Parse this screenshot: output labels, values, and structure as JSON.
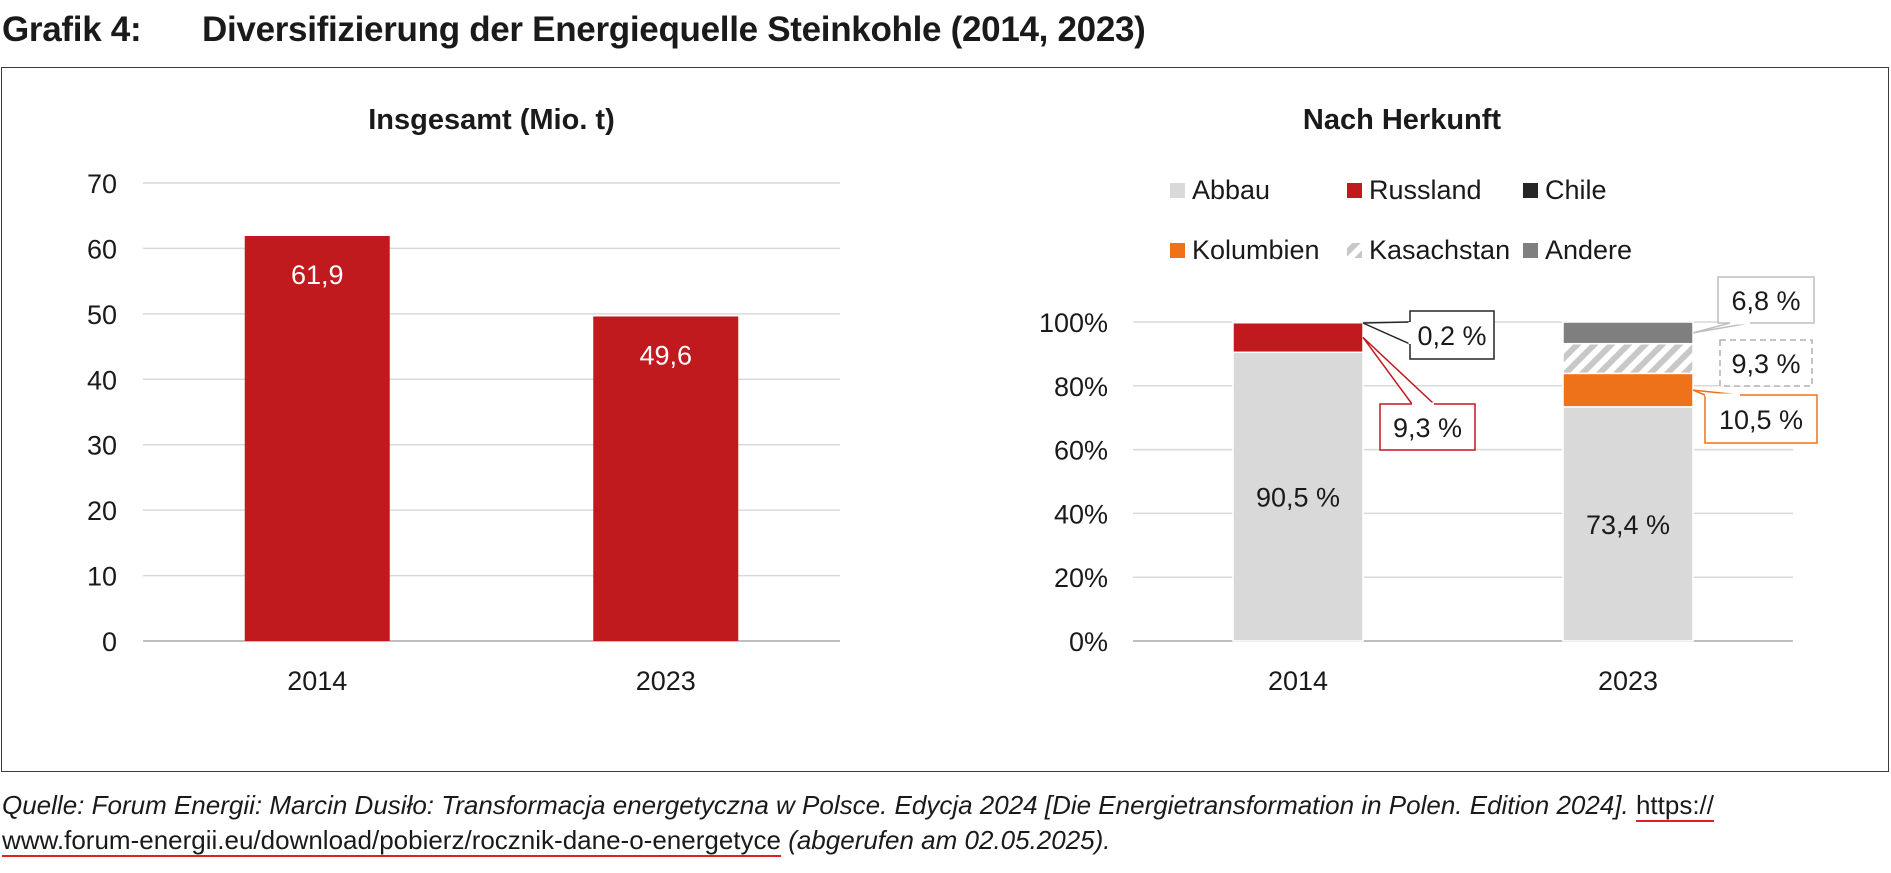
{
  "figure": {
    "label": "Grafik 4:",
    "title": "Diversifizierung der Energiequelle Steinkohle (2014, 2023)"
  },
  "chart_data": [
    {
      "type": "bar",
      "title": "Insgesamt (Mio. t)",
      "categories": [
        "2014",
        "2023"
      ],
      "values": [
        61.9,
        49.6
      ],
      "value_labels": [
        "61,9",
        "49,6"
      ],
      "ylim": [
        0,
        70
      ],
      "yticks": [
        "0",
        "10",
        "20",
        "30",
        "40",
        "50",
        "60",
        "70"
      ],
      "grid": true,
      "color": "#c0191e",
      "xlabel": "",
      "ylabel": ""
    },
    {
      "type": "bar",
      "stacked": true,
      "title": "Nach Herkunft",
      "categories": [
        "2014",
        "2023"
      ],
      "ylim": [
        0,
        100
      ],
      "yticks": [
        "0%",
        "20%",
        "40%",
        "60%",
        "80%",
        "100%"
      ],
      "grid": true,
      "legend_position": "top",
      "series": [
        {
          "name": "Abbau",
          "color": "#d9d9d9",
          "values": [
            90.5,
            73.4
          ],
          "labels": [
            "90,5 %",
            "73,4 %"
          ]
        },
        {
          "name": "Russland",
          "color": "#c0191e",
          "values": [
            9.3,
            0
          ],
          "labels": [
            "9,3 %",
            ""
          ]
        },
        {
          "name": "Chile",
          "color": "#262626",
          "values": [
            0.2,
            0
          ],
          "labels": [
            "0,2 %",
            ""
          ]
        },
        {
          "name": "Kolumbien",
          "color": "#ee7219",
          "values": [
            0,
            10.5
          ],
          "labels": [
            "",
            "10,5 %"
          ]
        },
        {
          "name": "Kasachstan",
          "color": "#c8c8c8",
          "pattern": "hatched",
          "values": [
            0,
            9.3
          ],
          "labels": [
            "",
            "9,3 %"
          ]
        },
        {
          "name": "Andere",
          "color": "#7f7f7f",
          "values": [
            0,
            6.8
          ],
          "labels": [
            "",
            "6,8 %"
          ]
        }
      ]
    }
  ],
  "source": {
    "text": "Quelle: Forum Energii: Marcin Dusiło: Transformacja energetyczna w Polsce. Edycja 2024 [Die Energietransformation in Polen. Edition 2024]. ",
    "url_part1": "https://",
    "url_part2": "www.forum-energii.eu/download/pobierz/rocznik-dane-o-energetyce",
    "suffix": " (abgerufen am 02.05.2025)."
  }
}
